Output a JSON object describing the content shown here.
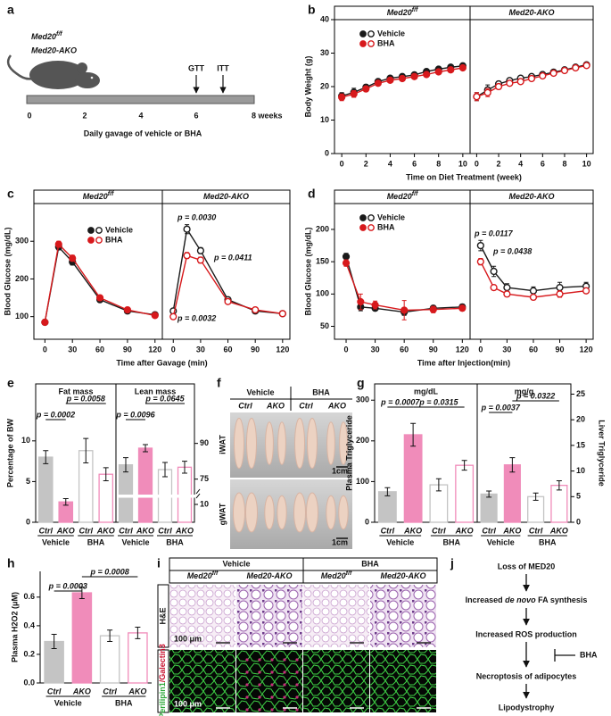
{
  "panel_a": {
    "panel": "a",
    "genotypes": [
      {
        "text": "Med20",
        "sup": "f/f"
      },
      {
        "text": "Med20-AKO"
      }
    ],
    "events": [
      "GTT",
      "ITT"
    ],
    "timeline_ticks": [
      "0",
      "2",
      "4",
      "6",
      "8 weeks"
    ],
    "caption": "Daily gavage of vehicle or BHA"
  },
  "chart_data": [
    {
      "panel": "b",
      "type": "line",
      "title": "Med20",
      "title_sup": "f/f",
      "xlabel": "Time on Diet Treatment (week)",
      "ylabel": "Body Weight (g)",
      "x": [
        0,
        1,
        2,
        3,
        4,
        5,
        6,
        7,
        8,
        9,
        10
      ],
      "xlim": [
        -0.6,
        10.6
      ],
      "xticks": [
        0,
        2,
        4,
        6,
        8,
        10
      ],
      "ylim": [
        0,
        40
      ],
      "yticks": [
        0,
        10,
        20,
        30,
        40
      ],
      "marker": "filled",
      "legend": "upper left",
      "series": [
        {
          "name": "Vehicle",
          "color": "#1a1a1a",
          "values": [
            17.2,
            18.3,
            19.8,
            21.5,
            22.5,
            23.0,
            23.5,
            24.5,
            25.2,
            25.8,
            26.2
          ],
          "errors": [
            1.0,
            1.2,
            0.8,
            0.6,
            0.6,
            0.6,
            0.6,
            0.6,
            0.6,
            0.6,
            0.6
          ]
        },
        {
          "name": "BHA",
          "color": "#d7191c",
          "values": [
            16.8,
            17.8,
            19.3,
            21.0,
            21.9,
            22.4,
            23.0,
            23.6,
            24.4,
            25.0,
            25.6
          ],
          "errors": [
            1.0,
            1.0,
            0.8,
            0.6,
            0.6,
            0.6,
            0.6,
            0.6,
            0.6,
            0.6,
            0.6
          ]
        }
      ]
    },
    {
      "type": "line",
      "title": "Med20-AKO",
      "x": [
        0,
        1,
        2,
        3,
        4,
        5,
        6,
        7,
        8,
        9,
        10
      ],
      "xlim": [
        -0.6,
        10.6
      ],
      "xticks": [
        0,
        2,
        4,
        6,
        8,
        10
      ],
      "ylim": [
        0,
        40
      ],
      "yticks": [
        0,
        10,
        20,
        30,
        40
      ],
      "marker": "open",
      "series": [
        {
          "color": "#1a1a1a",
          "values": [
            17.0,
            19.0,
            20.8,
            21.8,
            22.5,
            23.0,
            23.6,
            24.3,
            25.0,
            25.8,
            26.5
          ],
          "errors": [
            1.2,
            1.5,
            0.8,
            0.6,
            0.6,
            0.6,
            0.6,
            0.6,
            0.6,
            0.6,
            0.6
          ]
        },
        {
          "color": "#d7191c",
          "values": [
            17.0,
            18.2,
            20.0,
            21.0,
            21.5,
            22.4,
            23.2,
            24.0,
            24.8,
            25.6,
            26.3
          ],
          "errors": [
            1.2,
            1.2,
            0.8,
            0.6,
            0.6,
            0.6,
            0.6,
            0.6,
            0.6,
            0.6,
            0.6
          ]
        }
      ]
    },
    {
      "panel": "c",
      "type": "line",
      "title": "Med20",
      "title_sup": "f/f",
      "xlabel": "Time after Gavage (min)",
      "ylabel": "Blood Glucose (mg/dL)",
      "x": [
        0,
        15,
        30,
        60,
        90,
        120
      ],
      "xlim": [
        -12,
        128
      ],
      "xticks": [
        0,
        30,
        60,
        90,
        120
      ],
      "ylim": [
        40,
        400
      ],
      "yticks": [
        100,
        200,
        300
      ],
      "marker": "filled",
      "legend": "upper right",
      "series": [
        {
          "name": "Vehicle",
          "color": "#1a1a1a",
          "values": [
            85,
            285,
            245,
            145,
            115,
            105
          ],
          "errors": [
            3,
            8,
            8,
            5,
            4,
            4
          ]
        },
        {
          "name": "BHA",
          "color": "#d7191c",
          "values": [
            85,
            292,
            255,
            150,
            118,
            103
          ],
          "errors": [
            3,
            8,
            8,
            5,
            4,
            4
          ]
        }
      ]
    },
    {
      "type": "line",
      "title": "Med20-AKO",
      "x": [
        0,
        15,
        30,
        60,
        90,
        120
      ],
      "xlim": [
        -12,
        128
      ],
      "xticks": [
        0,
        30,
        60,
        90,
        120
      ],
      "ylim": [
        40,
        400
      ],
      "yticks": [
        100,
        200,
        300
      ],
      "marker": "open",
      "annotations": [
        "p = 0.0030",
        "p = 0.0411",
        "p = 0.0032"
      ],
      "series": [
        {
          "color": "#1a1a1a",
          "values": [
            115,
            332,
            275,
            145,
            115,
            108
          ],
          "errors": [
            5,
            12,
            8,
            6,
            5,
            4
          ]
        },
        {
          "color": "#d7191c",
          "values": [
            100,
            262,
            250,
            140,
            118,
            108
          ],
          "errors": [
            5,
            8,
            8,
            5,
            5,
            4
          ]
        }
      ]
    },
    {
      "panel": "d",
      "type": "line",
      "title": "Med20",
      "title_sup": "f/f",
      "xlabel": "Time after Injection(min)",
      "ylabel": "Blood Glucose (mg/dL)",
      "x": [
        0,
        15,
        30,
        60,
        90,
        120
      ],
      "xlim": [
        -12,
        128
      ],
      "xticks": [
        0,
        30,
        60,
        90,
        120
      ],
      "ylim": [
        30,
        240
      ],
      "yticks": [
        50,
        100,
        150,
        200
      ],
      "marker": "filled",
      "legend": "upper left",
      "series": [
        {
          "name": "Vehicle",
          "color": "#1a1a1a",
          "values": [
            158,
            80,
            78,
            72,
            78,
            80
          ],
          "errors": [
            5,
            6,
            4,
            5,
            4,
            4
          ]
        },
        {
          "name": "BHA",
          "color": "#d7191c",
          "values": [
            148,
            88,
            83,
            75,
            76,
            78
          ],
          "errors": [
            5,
            12,
            6,
            15,
            5,
            4
          ]
        }
      ]
    },
    {
      "type": "line",
      "title": "Med20-AKO",
      "x": [
        0,
        15,
        30,
        60,
        90,
        120
      ],
      "xlim": [
        -12,
        128
      ],
      "xticks": [
        0,
        30,
        60,
        90,
        120
      ],
      "ylim": [
        30,
        240
      ],
      "yticks": [
        50,
        100,
        150,
        200
      ],
      "marker": "open",
      "annotations": [
        "p = 0.0117",
        "p = 0.0438"
      ],
      "series": [
        {
          "color": "#1a1a1a",
          "values": [
            175,
            135,
            110,
            105,
            110,
            112
          ],
          "errors": [
            8,
            8,
            6,
            6,
            8,
            6
          ]
        },
        {
          "color": "#d7191c",
          "values": [
            150,
            110,
            100,
            95,
            100,
            105
          ],
          "errors": [
            5,
            4,
            4,
            4,
            5,
            4
          ]
        }
      ]
    },
    {
      "panel": "e",
      "type": "bar",
      "title": "Fat mass",
      "ylabel": "Percentage of BW",
      "categories": [
        "Ctrl",
        "AKO",
        "Ctrl",
        "AKO"
      ],
      "groups": [
        "Vehicle",
        "BHA"
      ],
      "values": [
        8.0,
        2.5,
        8.8,
        5.9
      ],
      "errors": [
        0.8,
        0.4,
        1.5,
        0.8
      ],
      "colors": [
        "#c4c4c4",
        "#f08cba",
        "#c4c4c4",
        "#f08cba"
      ],
      "filled": [
        true,
        true,
        false,
        false
      ],
      "ylim": [
        0,
        17
      ],
      "yticks": [
        0,
        5,
        10
      ],
      "annotations": [
        "p = 0.0002",
        "p = 0.0058"
      ]
    },
    {
      "type": "bar",
      "title": "Lean mass",
      "categories": [
        "Ctrl",
        "AKO",
        "Ctrl",
        "AKO"
      ],
      "groups": [
        "Vehicle",
        "BHA"
      ],
      "values": [
        81,
        88,
        79,
        80
      ],
      "errors": [
        3,
        1.5,
        3,
        2.5
      ],
      "colors": [
        "#c4c4c4",
        "#f08cba",
        "#c4c4c4",
        "#f08cba"
      ],
      "filled": [
        true,
        true,
        false,
        false
      ],
      "ylim": [
        0,
        115
      ],
      "axis_break": [
        12,
        70
      ],
      "y_axis": "right",
      "yticks": [
        10,
        75,
        90
      ],
      "annotations": [
        "p = 0.0096",
        "p = 0.0645"
      ]
    },
    {
      "panel": "g",
      "type": "bar",
      "title": "mg/dL",
      "ylabel": "Plasma Triglyceride",
      "categories": [
        "Ctrl",
        "AKO",
        "Ctrl",
        "AKO"
      ],
      "groups": [
        "Vehicle",
        "BHA"
      ],
      "values": [
        75,
        215,
        92,
        140
      ],
      "errors": [
        10,
        28,
        15,
        12
      ],
      "colors": [
        "#c4c4c4",
        "#f08cba",
        "#c4c4c4",
        "#f08cba"
      ],
      "filled": [
        true,
        true,
        false,
        false
      ],
      "ylim": [
        0,
        340
      ],
      "yticks": [
        0,
        100,
        200,
        300
      ],
      "annotations": [
        "p = 0.0007",
        "p = 0.0315"
      ]
    },
    {
      "type": "bar",
      "title": "mg/g",
      "ylabel": "Liver Triglyceride",
      "y_axis": "right",
      "categories": [
        "Ctrl",
        "AKO",
        "Ctrl",
        "AKO"
      ],
      "groups": [
        "Vehicle",
        "BHA"
      ],
      "values": [
        5.5,
        11.2,
        5.0,
        7.2
      ],
      "errors": [
        0.6,
        1.4,
        0.7,
        0.9
      ],
      "colors": [
        "#c4c4c4",
        "#f08cba",
        "#c4c4c4",
        "#f08cba"
      ],
      "filled": [
        true,
        true,
        false,
        false
      ],
      "ylim": [
        0,
        27
      ],
      "yticks": [
        0,
        5,
        10,
        15,
        20,
        25
      ],
      "annotations": [
        "p = 0.0037",
        "p = 0.0322"
      ]
    },
    {
      "panel": "h",
      "type": "bar",
      "ylabel": "Plasma H2O2 (μM)",
      "categories": [
        "Ctrl",
        "AKO",
        "Ctrl",
        "AKO"
      ],
      "groups": [
        "Vehicle",
        "BHA"
      ],
      "values": [
        0.29,
        0.63,
        0.33,
        0.35
      ],
      "errors": [
        0.05,
        0.04,
        0.04,
        0.04
      ],
      "colors": [
        "#c4c4c4",
        "#f08cba",
        "#c4c4c4",
        "#f08cba"
      ],
      "filled": [
        true,
        true,
        false,
        false
      ],
      "ylim": [
        0,
        0.78
      ],
      "yticks": [
        {
          "value": 0,
          "label": "0.0"
        },
        0.2,
        0.4,
        0.6
      ],
      "annotations": [
        "p = 0.0003",
        "p = 0.0008"
      ]
    }
  ],
  "panel_f": {
    "panel": "f",
    "treatments": [
      "Vehicle",
      "BHA"
    ],
    "genotypes": [
      "Ctrl",
      "AKO",
      "Ctrl",
      "AKO"
    ],
    "tissues": [
      "iWAT",
      "gWAT"
    ],
    "scale_bars": [
      "1cm",
      "1cm"
    ]
  },
  "panel_i": {
    "panel": "i",
    "treatments": [
      "Vehicle",
      "BHA"
    ],
    "genotypes": [
      {
        "text": "Med20",
        "sup": "f/f"
      },
      {
        "text": "Med20-AKO"
      },
      {
        "text": "Med20",
        "sup": "f/f"
      },
      {
        "text": "Med20-AKO"
      }
    ],
    "he_label": "H&E",
    "if_label": [
      "Perilipin1",
      "/Galectin3"
    ],
    "scale_bars": [
      "100 μm",
      "100 μm"
    ]
  },
  "panel_j": {
    "panel": "j",
    "steps": [
      [
        "Loss of MED20"
      ],
      [
        "Increased ",
        "de novo",
        " FA synthesis"
      ],
      [
        "Increased ROS production"
      ],
      [
        "Necroptosis of adipocytes"
      ],
      [
        "Lipodystrophy"
      ]
    ],
    "inhibitor": "BHA"
  }
}
